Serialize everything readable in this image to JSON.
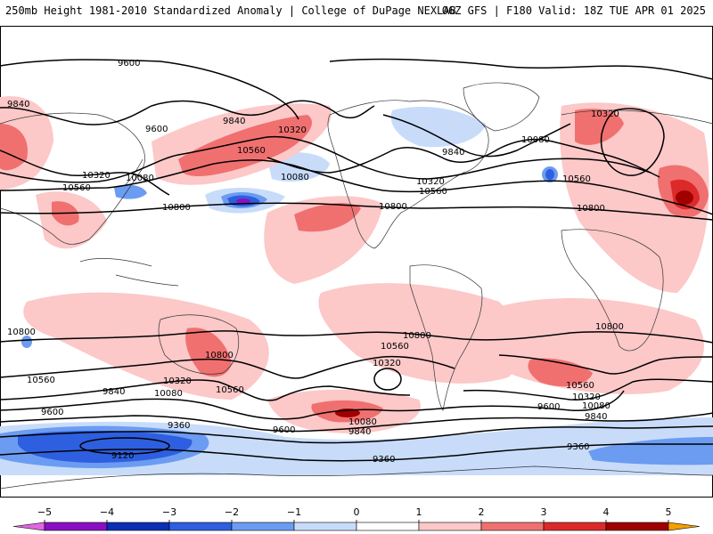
{
  "header": {
    "left": "250mb Height 1981-2010 Standardized Anomaly | College of DuPage NEXLAB",
    "right": "06Z GFS | F180 Valid: 18Z TUE APR 01 2025"
  },
  "colorbar": {
    "ticks": [
      {
        "value": -5,
        "label": "−5"
      },
      {
        "value": -4,
        "label": "−4"
      },
      {
        "value": -3,
        "label": "−3"
      },
      {
        "value": -2,
        "label": "−2"
      },
      {
        "value": -1,
        "label": "−1"
      },
      {
        "value": 0,
        "label": "0"
      },
      {
        "value": 1,
        "label": "1"
      },
      {
        "value": 2,
        "label": "2"
      },
      {
        "value": 3,
        "label": "3"
      },
      {
        "value": 4,
        "label": "4"
      },
      {
        "value": 5,
        "label": "5"
      }
    ],
    "bins": [
      {
        "from": -5.5,
        "to": -5,
        "color": "#e066e0"
      },
      {
        "from": -5,
        "to": -4,
        "color": "#8a0fc4"
      },
      {
        "from": -4,
        "to": -3,
        "color": "#0a2fb5"
      },
      {
        "from": -3,
        "to": -2,
        "color": "#2e5fe0"
      },
      {
        "from": -2,
        "to": -1,
        "color": "#6b9cf2"
      },
      {
        "from": -1,
        "to": 0,
        "color": "#c8dcfa"
      },
      {
        "from": 0,
        "to": 1,
        "color": "#ffffff"
      },
      {
        "from": 1,
        "to": 2,
        "color": "#fcc8c8"
      },
      {
        "from": 2,
        "to": 3,
        "color": "#f07070"
      },
      {
        "from": 3,
        "to": 4,
        "color": "#dc2a2a"
      },
      {
        "from": 4,
        "to": 5,
        "color": "#a00000"
      },
      {
        "from": 5,
        "to": 5.5,
        "color": "#f5a000"
      }
    ]
  },
  "contour_labels": {
    "c9600_top": "9600",
    "c9840_nw": "9840",
    "c9600_pac": "9600",
    "c9840_pac": "9840",
    "c10320_pac": "10320",
    "c10560_pac": "10560",
    "c10320_asia": "10320",
    "c10080_asia": "10080",
    "c10560_asia": "10560",
    "c10080_pac": "10080",
    "c10800_pac": "10800",
    "c9840_na": "9840",
    "c10080_atl": "10080",
    "c10320_na": "10320",
    "c10560_na": "10560",
    "c10800_na": "10800",
    "c10320_eu": "10320",
    "c10560_eu": "10560",
    "c10800_eu": "10800",
    "c10800_sw": "10800",
    "c10560_sw": "10560",
    "c10800_au": "10800",
    "c10320_au": "10320",
    "c10560_au": "10560",
    "c9840_s": "9840",
    "c10080_s": "10080",
    "c9600_s": "9600",
    "c10800_sa": "10800",
    "c10560_sa": "10560",
    "c10320_sa": "10320",
    "c9360_s": "9360",
    "c9600_sp": "9600",
    "c10080_sp": "10080",
    "c9840_sp": "9840",
    "c10800_si": "10800",
    "c10560_si": "10560",
    "c10320_si": "10320",
    "c9600_si": "9600",
    "c10080_si": "10080",
    "c9840_si": "9840",
    "c9360_se": "9360",
    "c9360_sc": "9360",
    "c9120_s": "9120"
  },
  "colors": {
    "map_border": "#000000",
    "contour": "#000000",
    "coast": "#333333"
  }
}
